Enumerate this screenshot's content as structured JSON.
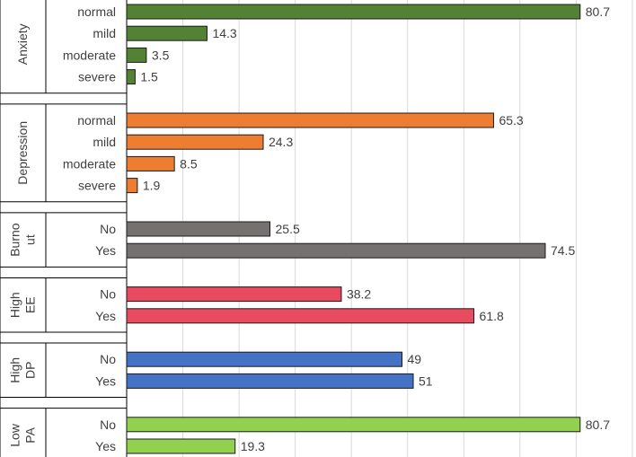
{
  "chart_data": {
    "type": "bar",
    "orientation": "horizontal",
    "title": "",
    "xlabel": "",
    "ylabel": "",
    "xlim": [
      0,
      90
    ],
    "grid": true,
    "groups": [
      {
        "name": "Anxiety",
        "label_lines": [
          "Anxiety"
        ],
        "color": "#548235",
        "categories": [
          "normal",
          "mild",
          "moderate",
          "severe"
        ],
        "values": [
          80.7,
          14.3,
          3.5,
          1.5
        ]
      },
      {
        "name": "Depression",
        "label_lines": [
          "Depression"
        ],
        "color": "#ED7D31",
        "categories": [
          "normal",
          "mild",
          "moderate",
          "severe"
        ],
        "values": [
          65.3,
          24.3,
          8.5,
          1.9
        ]
      },
      {
        "name": "Burnout",
        "label_lines": [
          "Burno",
          "ut"
        ],
        "color": "#767171",
        "categories": [
          "No",
          "Yes"
        ],
        "values": [
          25.5,
          74.5
        ]
      },
      {
        "name": "High EE",
        "label_lines": [
          "High",
          "EE"
        ],
        "color": "#E84A5F",
        "categories": [
          "No",
          "Yes"
        ],
        "values": [
          38.2,
          61.8
        ]
      },
      {
        "name": "High DP",
        "label_lines": [
          "High",
          "DP"
        ],
        "color": "#4472C4",
        "categories": [
          "No",
          "Yes"
        ],
        "values": [
          49,
          51
        ]
      },
      {
        "name": "Low PA",
        "label_lines": [
          "Low",
          "PA"
        ],
        "color": "#92D050",
        "categories": [
          "No",
          "Yes"
        ],
        "values": [
          80.7,
          19.3
        ]
      }
    ]
  }
}
